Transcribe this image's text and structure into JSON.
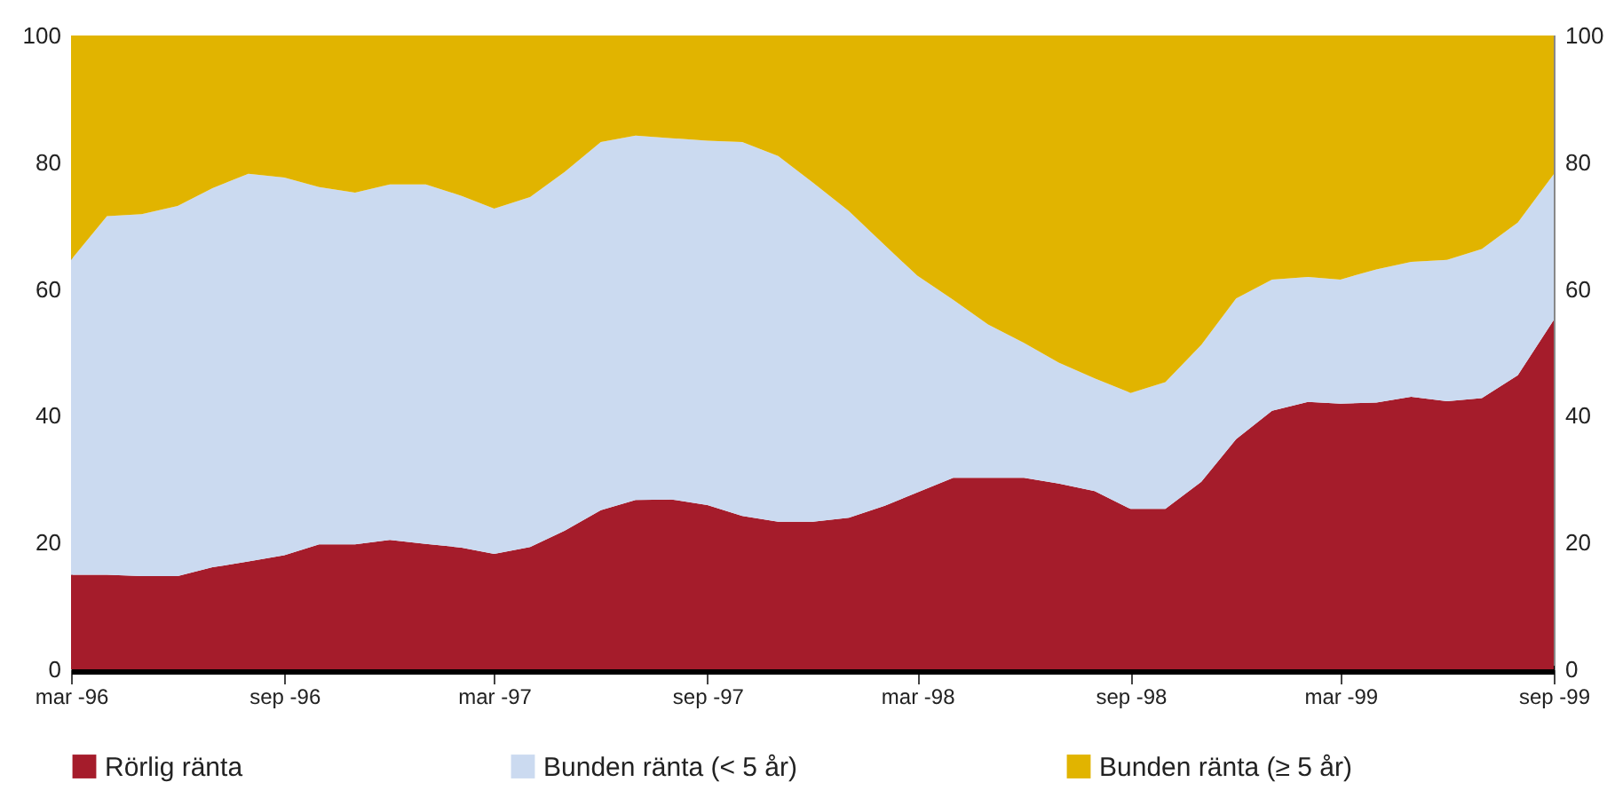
{
  "chart_data": {
    "type": "area",
    "stacked": true,
    "x": [
      "1996-03",
      "1996-04",
      "1996-05",
      "1996-06",
      "1996-07",
      "1996-08",
      "1996-09",
      "1996-10",
      "1996-11",
      "1996-12",
      "1997-01",
      "1997-02",
      "1997-03",
      "1997-04",
      "1997-05",
      "1997-06",
      "1997-07",
      "1997-08",
      "1997-09",
      "1997-10",
      "1997-11",
      "1997-12",
      "1998-01",
      "1998-02",
      "1998-03",
      "1998-04",
      "1998-05",
      "1998-06",
      "1998-07",
      "1998-08",
      "1998-09",
      "1998-10",
      "1998-11",
      "1998-12",
      "1999-01",
      "1999-02",
      "1999-03",
      "1999-04",
      "1999-05",
      "1999-06",
      "1999-07",
      "1999-08",
      "1999-09"
    ],
    "series": [
      {
        "name": "Rörlig ränta",
        "color": "#a51c2b",
        "values": [
          14.9,
          14.9,
          14.7,
          14.7,
          16.1,
          17.0,
          18.0,
          19.7,
          19.7,
          20.4,
          19.8,
          19.2,
          18.2,
          19.3,
          21.9,
          25.1,
          26.7,
          26.8,
          25.9,
          24.2,
          23.3,
          23.3,
          23.9,
          25.8,
          27.9,
          30.2,
          30.2,
          30.2,
          29.3,
          28.1,
          25.3,
          25.3,
          29.6,
          36.3,
          40.8,
          42.2,
          41.9,
          42.1,
          43.0,
          42.3,
          42.8,
          46.4,
          55.1
        ]
      },
      {
        "name": "Bunden ränta (< 5 år)",
        "color": "#cbdaf0",
        "values": [
          49.7,
          56.6,
          57.1,
          58.4,
          59.8,
          61.2,
          59.6,
          56.4,
          55.5,
          56.1,
          56.7,
          55.5,
          54.5,
          55.2,
          56.6,
          58.1,
          57.5,
          57.0,
          57.5,
          59.0,
          57.7,
          53.5,
          48.4,
          41.1,
          34.2,
          28.1,
          24.2,
          21.3,
          19.1,
          17.8,
          18.3,
          20.0,
          21.6,
          22.2,
          20.7,
          19.7,
          19.6,
          21.0,
          21.3,
          22.3,
          23.5,
          24.1,
          23.0
        ]
      },
      {
        "name": "Bunden ränta (≥ 5 år)",
        "color": "#e1b400",
        "values": [
          35.4,
          28.5,
          28.2,
          26.9,
          24.1,
          21.8,
          22.4,
          23.9,
          24.8,
          23.5,
          23.5,
          25.3,
          27.3,
          25.5,
          21.5,
          16.8,
          15.8,
          16.2,
          16.6,
          16.8,
          19.0,
          23.2,
          27.7,
          33.1,
          37.9,
          41.7,
          45.6,
          48.5,
          51.6,
          54.1,
          56.4,
          54.7,
          48.8,
          41.5,
          38.5,
          38.1,
          38.5,
          36.9,
          35.7,
          35.4,
          33.7,
          29.5,
          21.9
        ]
      }
    ],
    "xlim": [
      "1996-03",
      "1999-09"
    ],
    "xticks": [
      {
        "value": "1996-03",
        "label": "mar -96"
      },
      {
        "value": "1996-09",
        "label": "sep -96"
      },
      {
        "value": "1997-03",
        "label": "mar -97"
      },
      {
        "value": "1997-09",
        "label": "sep -97"
      },
      {
        "value": "1998-03",
        "label": "mar -98"
      },
      {
        "value": "1998-09",
        "label": "sep -98"
      },
      {
        "value": "1999-03",
        "label": "mar -99"
      },
      {
        "value": "1999-09",
        "label": "sep -99"
      }
    ],
    "ylim": [
      0,
      100
    ],
    "yticks": [
      0,
      20,
      40,
      60,
      80,
      100
    ],
    "y2lim": [
      0,
      100
    ],
    "y2ticks": [
      0,
      20,
      40,
      60,
      80,
      100
    ],
    "grid": false,
    "legend": "bottom"
  }
}
